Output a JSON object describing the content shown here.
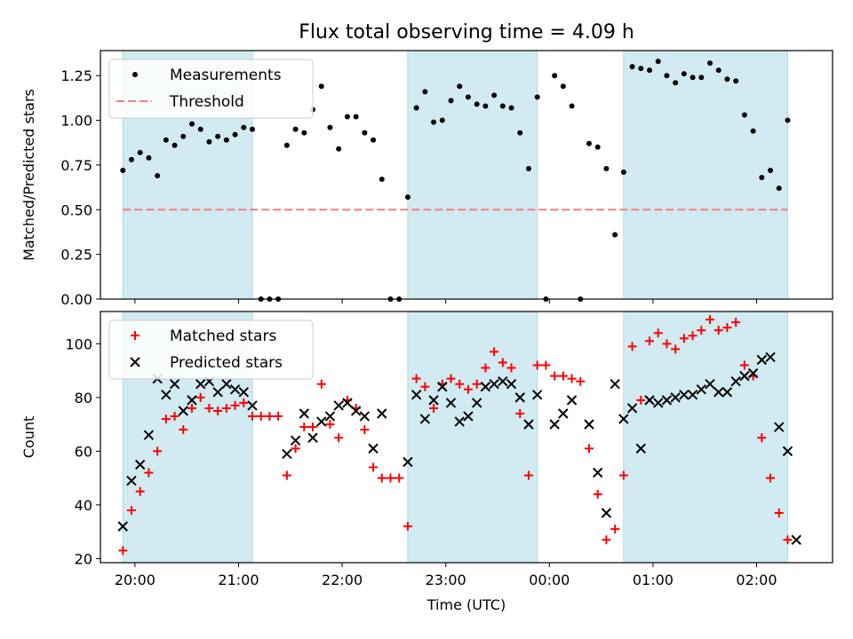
{
  "title": "Flux total observing time = 4.09 h",
  "colors": {
    "shade": "#add8e6",
    "measure": "#000000",
    "threshold": "#f08080",
    "matched": "#ff0000",
    "predicted": "#000000"
  },
  "chart_data": [
    {
      "type": "scatter",
      "title": "Flux total observing time = 4.09 h",
      "xlabel": "",
      "ylabel": "Matched/Predicted stars",
      "ylim": [
        0,
        1.39
      ],
      "yticks": [
        "0.00",
        "0.25",
        "0.50",
        "0.75",
        "1.00",
        "1.25"
      ],
      "legend": [
        "Measurements",
        "Threshold"
      ],
      "legend_position": "top-left",
      "threshold": 0.5,
      "shaded_intervals": [
        [
          "19:53",
          "21:08"
        ],
        [
          "22:38",
          "23:53"
        ],
        [
          "00:43",
          "02:18"
        ]
      ],
      "series": [
        {
          "name": "Measurements",
          "marker": "dot",
          "points": [
            [
              "19:53",
              0.72
            ],
            [
              "19:58",
              0.78
            ],
            [
              "20:03",
              0.82
            ],
            [
              "20:08",
              0.79
            ],
            [
              "20:13",
              0.69
            ],
            [
              "20:18",
              0.89
            ],
            [
              "20:23",
              0.86
            ],
            [
              "20:28",
              0.91
            ],
            [
              "20:33",
              0.98
            ],
            [
              "20:38",
              0.95
            ],
            [
              "20:43",
              0.88
            ],
            [
              "20:48",
              0.91
            ],
            [
              "20:53",
              0.89
            ],
            [
              "20:58",
              0.92
            ],
            [
              "21:03",
              0.96
            ],
            [
              "21:08",
              0.95
            ],
            [
              "21:13",
              0.0
            ],
            [
              "21:18",
              0.0
            ],
            [
              "21:23",
              0.0
            ],
            [
              "21:28",
              0.86
            ],
            [
              "21:33",
              0.95
            ],
            [
              "21:38",
              0.93
            ],
            [
              "21:43",
              1.06
            ],
            [
              "21:48",
              1.19
            ],
            [
              "21:53",
              0.96
            ],
            [
              "21:58",
              0.84
            ],
            [
              "22:03",
              1.02
            ],
            [
              "22:08",
              1.02
            ],
            [
              "22:13",
              0.93
            ],
            [
              "22:18",
              0.89
            ],
            [
              "22:23",
              0.67
            ],
            [
              "22:28",
              0.0
            ],
            [
              "22:33",
              0.0
            ],
            [
              "22:38",
              0.57
            ],
            [
              "22:43",
              1.07
            ],
            [
              "22:48",
              1.16
            ],
            [
              "22:53",
              0.99
            ],
            [
              "22:58",
              1.0
            ],
            [
              "23:03",
              1.11
            ],
            [
              "23:08",
              1.19
            ],
            [
              "23:13",
              1.13
            ],
            [
              "23:18",
              1.09
            ],
            [
              "23:23",
              1.08
            ],
            [
              "23:28",
              1.14
            ],
            [
              "23:33",
              1.08
            ],
            [
              "23:38",
              1.07
            ],
            [
              "23:43",
              0.93
            ],
            [
              "23:48",
              0.73
            ],
            [
              "23:53",
              1.13
            ],
            [
              "23:58",
              0.0
            ],
            [
              "00:03",
              1.25
            ],
            [
              "00:08",
              1.19
            ],
            [
              "00:13",
              1.08
            ],
            [
              "00:18",
              0.0
            ],
            [
              "00:23",
              0.87
            ],
            [
              "00:28",
              0.85
            ],
            [
              "00:33",
              0.73
            ],
            [
              "00:38",
              0.36
            ],
            [
              "00:43",
              0.71
            ],
            [
              "00:48",
              1.3
            ],
            [
              "00:53",
              1.29
            ],
            [
              "00:58",
              1.28
            ],
            [
              "01:03",
              1.33
            ],
            [
              "01:08",
              1.25
            ],
            [
              "01:13",
              1.21
            ],
            [
              "01:18",
              1.26
            ],
            [
              "01:23",
              1.24
            ],
            [
              "01:28",
              1.24
            ],
            [
              "01:33",
              1.32
            ],
            [
              "01:38",
              1.28
            ],
            [
              "01:43",
              1.23
            ],
            [
              "01:48",
              1.22
            ],
            [
              "01:53",
              1.03
            ],
            [
              "01:58",
              0.94
            ],
            [
              "02:03",
              0.68
            ],
            [
              "02:08",
              0.72
            ],
            [
              "02:13",
              0.62
            ],
            [
              "02:18",
              1.0
            ]
          ]
        },
        {
          "name": "Threshold",
          "style": "dashed",
          "points": [
            [
              "19:53",
              0.5
            ],
            [
              "02:18",
              0.5
            ]
          ]
        }
      ]
    },
    {
      "type": "scatter",
      "xlabel": "Time (UTC)",
      "ylabel": "Count",
      "ylim": [
        18.5,
        112
      ],
      "yticks": [
        "20",
        "40",
        "60",
        "80",
        "100"
      ],
      "xticks": [
        "20:00",
        "21:00",
        "22:00",
        "23:00",
        "00:00",
        "01:00",
        "02:00"
      ],
      "legend": [
        "Matched stars",
        "Predicted stars"
      ],
      "legend_position": "top-left",
      "shaded_intervals": [
        [
          "19:53",
          "21:08"
        ],
        [
          "22:38",
          "23:53"
        ],
        [
          "00:43",
          "02:18"
        ]
      ],
      "series": [
        {
          "name": "Matched stars",
          "marker": "plus",
          "points": [
            [
              "19:53",
              23
            ],
            [
              "19:58",
              38
            ],
            [
              "20:03",
              45
            ],
            [
              "20:08",
              52
            ],
            [
              "20:13",
              60
            ],
            [
              "20:18",
              72
            ],
            [
              "20:23",
              73
            ],
            [
              "20:28",
              68
            ],
            [
              "20:33",
              76
            ],
            [
              "20:38",
              80
            ],
            [
              "20:43",
              76
            ],
            [
              "20:48",
              75
            ],
            [
              "20:53",
              76
            ],
            [
              "20:58",
              77
            ],
            [
              "21:03",
              78
            ],
            [
              "21:08",
              73
            ],
            [
              "21:13",
              73
            ],
            [
              "21:18",
              73
            ],
            [
              "21:23",
              73
            ],
            [
              "21:28",
              51
            ],
            [
              "21:33",
              61
            ],
            [
              "21:38",
              69
            ],
            [
              "21:43",
              69
            ],
            [
              "21:48",
              85
            ],
            [
              "21:53",
              70
            ],
            [
              "21:58",
              65
            ],
            [
              "22:03",
              79
            ],
            [
              "22:08",
              76
            ],
            [
              "22:13",
              68
            ],
            [
              "22:18",
              54
            ],
            [
              "22:23",
              50
            ],
            [
              "22:28",
              50
            ],
            [
              "22:33",
              50
            ],
            [
              "22:38",
              32
            ],
            [
              "22:43",
              87
            ],
            [
              "22:48",
              84
            ],
            [
              "22:53",
              76
            ],
            [
              "22:58",
              85
            ],
            [
              "23:03",
              87
            ],
            [
              "23:08",
              85
            ],
            [
              "23:13",
              83
            ],
            [
              "23:18",
              85
            ],
            [
              "23:23",
              91
            ],
            [
              "23:28",
              97
            ],
            [
              "23:33",
              93
            ],
            [
              "23:38",
              91
            ],
            [
              "23:43",
              74
            ],
            [
              "23:48",
              51
            ],
            [
              "23:53",
              92
            ],
            [
              "23:58",
              92
            ],
            [
              "00:03",
              88
            ],
            [
              "00:08",
              88
            ],
            [
              "00:13",
              87
            ],
            [
              "00:18",
              86
            ],
            [
              "00:23",
              61
            ],
            [
              "00:28",
              44
            ],
            [
              "00:33",
              27
            ],
            [
              "00:38",
              31
            ],
            [
              "00:43",
              51
            ],
            [
              "00:48",
              99
            ],
            [
              "00:53",
              79
            ],
            [
              "00:58",
              101
            ],
            [
              "01:03",
              104
            ],
            [
              "01:08",
              100
            ],
            [
              "01:13",
              98
            ],
            [
              "01:18",
              102
            ],
            [
              "01:23",
              103
            ],
            [
              "01:28",
              105
            ],
            [
              "01:33",
              109
            ],
            [
              "01:38",
              105
            ],
            [
              "01:43",
              106
            ],
            [
              "01:48",
              108
            ],
            [
              "01:53",
              92
            ],
            [
              "01:58",
              88
            ],
            [
              "02:03",
              65
            ],
            [
              "02:08",
              50
            ],
            [
              "02:13",
              37
            ],
            [
              "02:18",
              27
            ]
          ]
        },
        {
          "name": "Predicted stars",
          "marker": "x",
          "points": [
            [
              "19:53",
              32
            ],
            [
              "19:58",
              49
            ],
            [
              "20:03",
              55
            ],
            [
              "20:08",
              66
            ],
            [
              "20:13",
              87
            ],
            [
              "20:18",
              81
            ],
            [
              "20:23",
              85
            ],
            [
              "20:28",
              75
            ],
            [
              "20:33",
              79
            ],
            [
              "20:38",
              85
            ],
            [
              "20:43",
              86
            ],
            [
              "20:48",
              82
            ],
            [
              "20:53",
              85
            ],
            [
              "20:58",
              83
            ],
            [
              "21:03",
              82
            ],
            [
              "21:08",
              77
            ],
            [
              "21:28",
              59
            ],
            [
              "21:33",
              64
            ],
            [
              "21:38",
              74
            ],
            [
              "21:43",
              65
            ],
            [
              "21:48",
              71
            ],
            [
              "21:53",
              73
            ],
            [
              "21:58",
              77
            ],
            [
              "22:03",
              78
            ],
            [
              "22:08",
              75
            ],
            [
              "22:13",
              73
            ],
            [
              "22:18",
              61
            ],
            [
              "22:23",
              74
            ],
            [
              "22:38",
              56
            ],
            [
              "22:43",
              81
            ],
            [
              "22:48",
              72
            ],
            [
              "22:53",
              79
            ],
            [
              "22:58",
              84
            ],
            [
              "23:03",
              78
            ],
            [
              "23:08",
              71
            ],
            [
              "23:13",
              73
            ],
            [
              "23:18",
              78
            ],
            [
              "23:23",
              84
            ],
            [
              "23:28",
              85
            ],
            [
              "23:33",
              86
            ],
            [
              "23:38",
              85
            ],
            [
              "23:43",
              80
            ],
            [
              "23:48",
              70
            ],
            [
              "23:53",
              81
            ],
            [
              "00:03",
              70
            ],
            [
              "00:08",
              74
            ],
            [
              "00:13",
              79
            ],
            [
              "00:23",
              70
            ],
            [
              "00:28",
              52
            ],
            [
              "00:33",
              37
            ],
            [
              "00:38",
              85
            ],
            [
              "00:43",
              72
            ],
            [
              "00:48",
              76
            ],
            [
              "00:53",
              61
            ],
            [
              "00:58",
              79
            ],
            [
              "01:03",
              78
            ],
            [
              "01:08",
              79
            ],
            [
              "01:13",
              80
            ],
            [
              "01:18",
              81
            ],
            [
              "01:23",
              81
            ],
            [
              "01:28",
              83
            ],
            [
              "01:33",
              85
            ],
            [
              "01:38",
              82
            ],
            [
              "01:43",
              82
            ],
            [
              "01:48",
              86
            ],
            [
              "01:53",
              88
            ],
            [
              "01:58",
              89
            ],
            [
              "02:03",
              94
            ],
            [
              "02:08",
              95
            ],
            [
              "02:13",
              69
            ],
            [
              "02:18",
              60
            ],
            [
              "02:23",
              27
            ]
          ]
        }
      ]
    }
  ]
}
